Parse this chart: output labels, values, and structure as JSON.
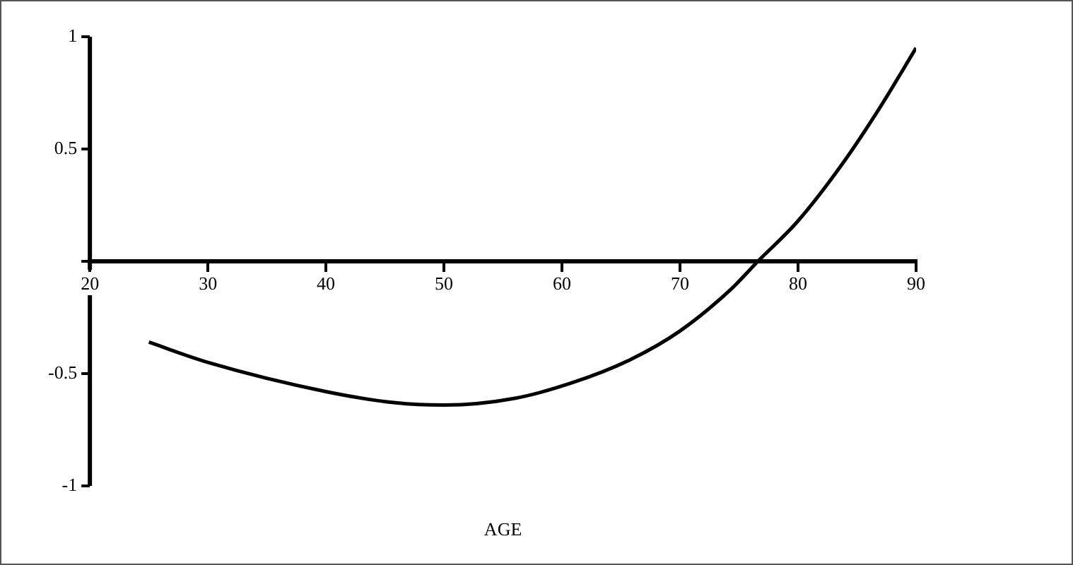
{
  "chart_data": {
    "type": "line",
    "xlabel": "AGE",
    "x": [
      25,
      30,
      40,
      45.9,
      50,
      56,
      60.9,
      65.7,
      70,
      74.2,
      76.6,
      80,
      83.7,
      87,
      90
    ],
    "values": [
      -0.36,
      -0.45,
      -0.58,
      -0.63,
      -0.64,
      -0.61,
      -0.54,
      -0.44,
      -0.31,
      -0.13,
      0,
      0.18,
      0.43,
      0.69,
      0.95
    ],
    "color": "#000000",
    "xlim": [
      20,
      90
    ],
    "xticks": [
      20,
      30,
      40,
      50,
      60,
      70,
      80,
      90
    ],
    "ylim": [
      -1,
      1
    ],
    "yticks": [
      -1,
      -0.5,
      {
        "value": 0,
        "label": null
      },
      0.5,
      1
    ],
    "grid": false,
    "legend": false,
    "marker": "none",
    "line_style": "solid"
  }
}
